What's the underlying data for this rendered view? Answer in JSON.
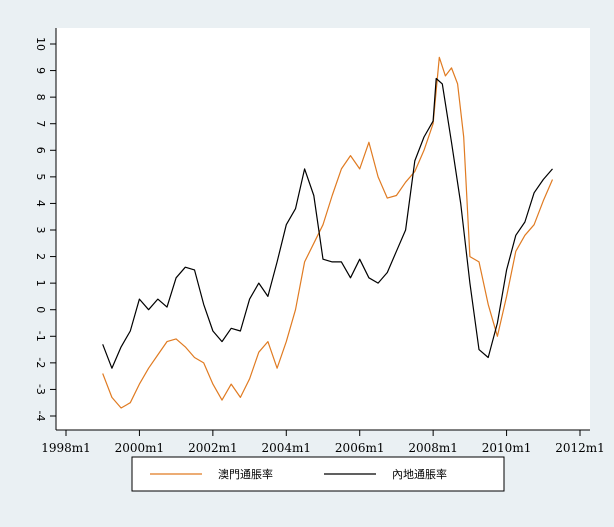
{
  "chart_data": {
    "type": "line",
    "title": "",
    "xlabel": "",
    "ylabel": "",
    "xlim": [
      "1998m1",
      "2012m1"
    ],
    "ylim": [
      -4,
      10
    ],
    "x_ticks": [
      "1998m1",
      "2000m1",
      "2002m1",
      "2004m1",
      "2006m1",
      "2008m1",
      "2010m1",
      "2012m1"
    ],
    "y_ticks": [
      "10",
      "9",
      "8",
      "7",
      "6",
      "5",
      "4",
      "3",
      "2",
      "1",
      "0",
      "-1",
      "-2",
      "-3",
      "-4"
    ],
    "grid": false,
    "legend_position": "bottom",
    "series": [
      {
        "name": "澳門通脹率",
        "color": "#e07b22",
        "points": [
          [
            "1999m1",
            -2.4
          ],
          [
            "1999m4",
            -3.3
          ],
          [
            "1999m7",
            -3.7
          ],
          [
            "1999m10",
            -3.5
          ],
          [
            "2000m1",
            -2.8
          ],
          [
            "2000m4",
            -2.2
          ],
          [
            "2000m7",
            -1.7
          ],
          [
            "2000m10",
            -1.2
          ],
          [
            "2001m1",
            -1.1
          ],
          [
            "2001m4",
            -1.4
          ],
          [
            "2001m7",
            -1.8
          ],
          [
            "2001m10",
            -2.0
          ],
          [
            "2002m1",
            -2.8
          ],
          [
            "2002m4",
            -3.4
          ],
          [
            "2002m7",
            -2.8
          ],
          [
            "2002m10",
            -3.3
          ],
          [
            "2003m1",
            -2.6
          ],
          [
            "2003m4",
            -1.6
          ],
          [
            "2003m7",
            -1.2
          ],
          [
            "2003m10",
            -2.2
          ],
          [
            "2004m1",
            -1.2
          ],
          [
            "2004m4",
            0.0
          ],
          [
            "2004m7",
            1.8
          ],
          [
            "2004m10",
            2.5
          ],
          [
            "2005m1",
            3.2
          ],
          [
            "2005m4",
            4.3
          ],
          [
            "2005m7",
            5.3
          ],
          [
            "2005m10",
            5.8
          ],
          [
            "2006m1",
            5.3
          ],
          [
            "2006m4",
            6.3
          ],
          [
            "2006m7",
            5.0
          ],
          [
            "2006m10",
            4.2
          ],
          [
            "2007m1",
            4.3
          ],
          [
            "2007m4",
            4.8
          ],
          [
            "2007m7",
            5.2
          ],
          [
            "2007m10",
            6.0
          ],
          [
            "2008m1",
            7.0
          ],
          [
            "2008m3",
            9.5
          ],
          [
            "2008m5",
            8.8
          ],
          [
            "2008m7",
            9.1
          ],
          [
            "2008m9",
            8.5
          ],
          [
            "2008m11",
            6.5
          ],
          [
            "2009m1",
            2.0
          ],
          [
            "2009m4",
            1.8
          ],
          [
            "2009m7",
            0.2
          ],
          [
            "2009m10",
            -1.0
          ],
          [
            "2010m1",
            0.5
          ],
          [
            "2010m4",
            2.2
          ],
          [
            "2010m7",
            2.8
          ],
          [
            "2010m10",
            3.2
          ],
          [
            "2011m1",
            4.1
          ],
          [
            "2011m4",
            4.9
          ]
        ]
      },
      {
        "name": "內地通脹率",
        "color": "#000000",
        "points": [
          [
            "1999m1",
            -1.3
          ],
          [
            "1999m4",
            -2.2
          ],
          [
            "1999m7",
            -1.4
          ],
          [
            "1999m10",
            -0.8
          ],
          [
            "2000m1",
            0.4
          ],
          [
            "2000m4",
            0.0
          ],
          [
            "2000m7",
            0.4
          ],
          [
            "2000m10",
            0.1
          ],
          [
            "2001m1",
            1.2
          ],
          [
            "2001m4",
            1.6
          ],
          [
            "2001m7",
            1.5
          ],
          [
            "2001m10",
            0.2
          ],
          [
            "2002m1",
            -0.8
          ],
          [
            "2002m4",
            -1.2
          ],
          [
            "2002m7",
            -0.7
          ],
          [
            "2002m10",
            -0.8
          ],
          [
            "2003m1",
            0.4
          ],
          [
            "2003m4",
            1.0
          ],
          [
            "2003m7",
            0.5
          ],
          [
            "2003m10",
            1.8
          ],
          [
            "2004m1",
            3.2
          ],
          [
            "2004m4",
            3.8
          ],
          [
            "2004m7",
            5.3
          ],
          [
            "2004m10",
            4.3
          ],
          [
            "2005m1",
            1.9
          ],
          [
            "2005m4",
            1.8
          ],
          [
            "2005m7",
            1.8
          ],
          [
            "2005m10",
            1.2
          ],
          [
            "2006m1",
            1.9
          ],
          [
            "2006m4",
            1.2
          ],
          [
            "2006m7",
            1.0
          ],
          [
            "2006m10",
            1.4
          ],
          [
            "2007m1",
            2.2
          ],
          [
            "2007m4",
            3.0
          ],
          [
            "2007m7",
            5.6
          ],
          [
            "2007m10",
            6.5
          ],
          [
            "2008m1",
            7.1
          ],
          [
            "2008m2",
            8.7
          ],
          [
            "2008m4",
            8.5
          ],
          [
            "2008m7",
            6.3
          ],
          [
            "2008m10",
            4.0
          ],
          [
            "2009m1",
            1.0
          ],
          [
            "2009m4",
            -1.5
          ],
          [
            "2009m7",
            -1.8
          ],
          [
            "2009m10",
            -0.5
          ],
          [
            "2010m1",
            1.5
          ],
          [
            "2010m4",
            2.8
          ],
          [
            "2010m7",
            3.3
          ],
          [
            "2010m10",
            4.4
          ],
          [
            "2011m1",
            4.9
          ],
          [
            "2011m4",
            5.3
          ]
        ]
      }
    ]
  }
}
